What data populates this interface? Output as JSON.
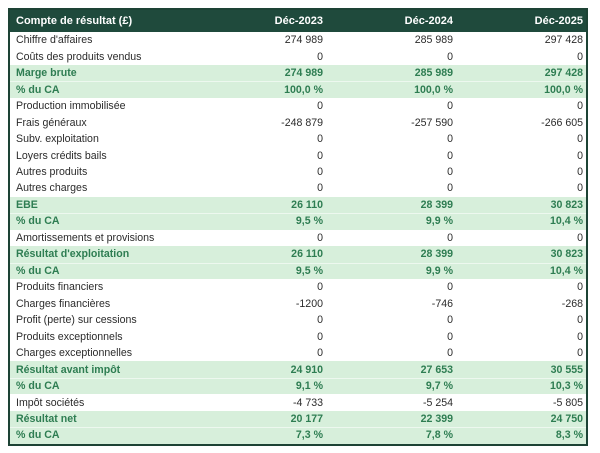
{
  "colors": {
    "header_bg": "#1f4a3c",
    "header_text": "#ffffff",
    "highlight_bg": "#d7efdb",
    "highlight_text": "#2e7d52",
    "border": "#1d4335",
    "text": "#2b2b2b"
  },
  "table": {
    "header": {
      "label": "Compte de résultat (£)",
      "cols": [
        "Déc-2023",
        "Déc-2024",
        "Déc-2025"
      ]
    },
    "rows": [
      {
        "label": "Chiffre d'affaires",
        "values": [
          "274 989",
          "285 989",
          "297 428"
        ],
        "highlight": false
      },
      {
        "label": "Coûts des produits vendus",
        "values": [
          "0",
          "0",
          "0"
        ],
        "highlight": false
      },
      {
        "label": "Marge brute",
        "values": [
          "274 989",
          "285 989",
          "297 428"
        ],
        "highlight": true
      },
      {
        "label": "% du CA",
        "values": [
          "100,0 %",
          "100,0 %",
          "100,0 %"
        ],
        "highlight": true
      },
      {
        "label": "Production immobilisée",
        "values": [
          "0",
          "0",
          "0"
        ],
        "highlight": false
      },
      {
        "label": "Frais généraux",
        "values": [
          "-248 879",
          "-257 590",
          "-266 605"
        ],
        "highlight": false
      },
      {
        "label": "Subv. exploitation",
        "values": [
          "0",
          "0",
          "0"
        ],
        "highlight": false
      },
      {
        "label": "Loyers crédits bails",
        "values": [
          "0",
          "0",
          "0"
        ],
        "highlight": false
      },
      {
        "label": "Autres produits",
        "values": [
          "0",
          "0",
          "0"
        ],
        "highlight": false
      },
      {
        "label": "Autres charges",
        "values": [
          "0",
          "0",
          "0"
        ],
        "highlight": false
      },
      {
        "label": "EBE",
        "values": [
          "26 110",
          "28 399",
          "30 823"
        ],
        "highlight": true
      },
      {
        "label": "% du CA",
        "values": [
          "9,5 %",
          "9,9 %",
          "10,4 %"
        ],
        "highlight": true
      },
      {
        "label": "Amortissements et provisions",
        "values": [
          "0",
          "0",
          "0"
        ],
        "highlight": false
      },
      {
        "label": "Résultat d'exploitation",
        "values": [
          "26 110",
          "28 399",
          "30 823"
        ],
        "highlight": true
      },
      {
        "label": "% du CA",
        "values": [
          "9,5 %",
          "9,9 %",
          "10,4 %"
        ],
        "highlight": true
      },
      {
        "label": "Produits financiers",
        "values": [
          "0",
          "0",
          "0"
        ],
        "highlight": false
      },
      {
        "label": "Charges financières",
        "values": [
          "-1200",
          "-746",
          "-268"
        ],
        "highlight": false
      },
      {
        "label": "Profit (perte) sur cessions",
        "values": [
          "0",
          "0",
          "0"
        ],
        "highlight": false
      },
      {
        "label": "Produits exceptionnels",
        "values": [
          "0",
          "0",
          "0"
        ],
        "highlight": false
      },
      {
        "label": "Charges exceptionnelles",
        "values": [
          "0",
          "0",
          "0"
        ],
        "highlight": false
      },
      {
        "label": "Résultat avant impôt",
        "values": [
          "24 910",
          "27 653",
          "30 555"
        ],
        "highlight": true
      },
      {
        "label": "% du CA",
        "values": [
          "9,1 %",
          "9,7 %",
          "10,3 %"
        ],
        "highlight": true
      },
      {
        "label": "Impôt sociétés",
        "values": [
          "-4 733",
          "-5 254",
          "-5 805"
        ],
        "highlight": false
      },
      {
        "label": "Résultat net",
        "values": [
          "20 177",
          "22 399",
          "24 750"
        ],
        "highlight": true
      },
      {
        "label": "% du CA",
        "values": [
          "7,3 %",
          "7,8 %",
          "8,3 %"
        ],
        "highlight": true
      }
    ]
  }
}
